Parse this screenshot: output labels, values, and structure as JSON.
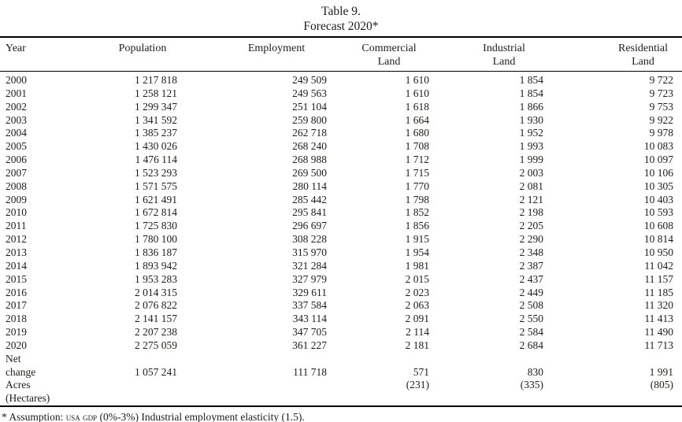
{
  "page": {
    "background_color": "#ffffff",
    "text_color": "#1d1d1b",
    "rule_color": "#000000"
  },
  "title": {
    "line1": "Table 9.",
    "line2": "Forecast 2020*"
  },
  "table": {
    "headers": [
      {
        "lines": [
          "Year"
        ]
      },
      {
        "lines": [
          "Population"
        ]
      },
      {
        "lines": [
          "Employment"
        ]
      },
      {
        "lines": [
          "Commercial",
          "Land"
        ]
      },
      {
        "lines": [
          "Industrial",
          "Land"
        ]
      },
      {
        "lines": [
          "Residential",
          "Land"
        ]
      }
    ],
    "rows": [
      [
        "2000",
        "1 217 818",
        "249 509",
        "1 610",
        "1 854",
        "9 722"
      ],
      [
        "2001",
        "1 258 121",
        "249 563",
        "1 610",
        "1 854",
        "9 723"
      ],
      [
        "2002",
        "1 299 347",
        "251 104",
        "1 618",
        "1 866",
        "9 753"
      ],
      [
        "2003",
        "1 341 592",
        "259 800",
        "1 664",
        "1 930",
        "9 922"
      ],
      [
        "2004",
        "1 385 237",
        "262 718",
        "1 680",
        "1 952",
        "9 978"
      ],
      [
        "2005",
        "1 430 026",
        "268 240",
        "1 708",
        "1 993",
        "10 083"
      ],
      [
        "2006",
        "1 476 114",
        "268 988",
        "1 712",
        "1 999",
        "10 097"
      ],
      [
        "2007",
        "1 523 293",
        "269 500",
        "1 715",
        "2 003",
        "10 106"
      ],
      [
        "2008",
        "1 571 575",
        "280 114",
        "1 770",
        "2 081",
        "10 305"
      ],
      [
        "2009",
        "1 621 491",
        "285 442",
        "1 798",
        "2 121",
        "10 403"
      ],
      [
        "2010",
        "1 672 814",
        "295 841",
        "1 852",
        "2 198",
        "10 593"
      ],
      [
        "2011",
        "1 725 830",
        "296 697",
        "1 856",
        "2 205",
        "10 608"
      ],
      [
        "2012",
        "1 780 100",
        "308 228",
        "1 915",
        "2 290",
        "10 814"
      ],
      [
        "2013",
        "1 836 187",
        "315 970",
        "1 954",
        "2 348",
        "10 950"
      ],
      [
        "2014",
        "1 893 942",
        "321 284",
        "1 981",
        "2 387",
        "11 042"
      ],
      [
        "2015",
        "1 953 283",
        "327 979",
        "2 015",
        "2 437",
        "11 157"
      ],
      [
        "2016",
        "2 014 315",
        "329 611",
        "2 023",
        "2 449",
        "11 185"
      ],
      [
        "2017",
        "2 076 822",
        "337 584",
        "2 063",
        "2 508",
        "11 320"
      ],
      [
        "2018",
        "2 141 157",
        "343 114",
        "2 091",
        "2 550",
        "11 413"
      ],
      [
        "2019",
        "2 207 238",
        "347 705",
        "2 114",
        "2 584",
        "11 490"
      ],
      [
        "2020",
        "2 275 059",
        "361 227",
        "2 181",
        "2 684",
        "11 713"
      ],
      [
        "Net",
        "",
        "",
        "",
        "",
        ""
      ],
      [
        "change",
        "1 057 241",
        "111 718",
        "571",
        "830",
        "1 991"
      ],
      [
        "Acres",
        "",
        "",
        "(231)",
        "(335)",
        "(805)"
      ],
      [
        "(Hectares)",
        "",
        "",
        "",
        "",
        ""
      ]
    ]
  },
  "footnote": {
    "part1": "* Assumption: ",
    "smallcaps": "usa gdp",
    "part2": " (0%-3%) Industrial employment elasticity (1.5)."
  }
}
